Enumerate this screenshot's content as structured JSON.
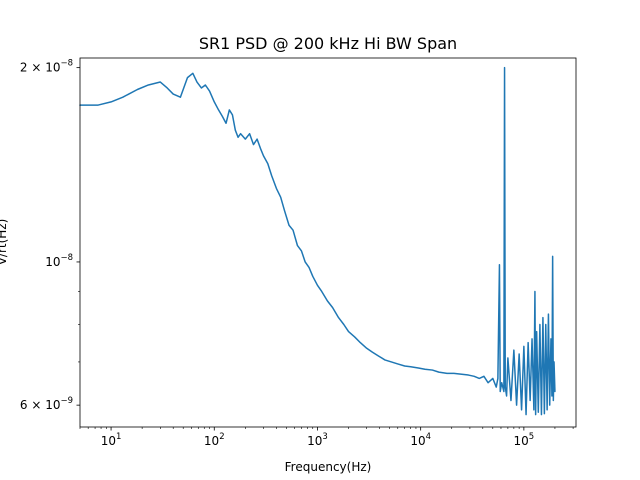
{
  "chart_data": {
    "type": "line",
    "title": "SR1 PSD @ 200 kHz Hi BW Span",
    "xlabel": "Frequency(Hz)",
    "ylabel": "V/rt(Hz)",
    "xscale": "log",
    "yscale": "log",
    "xlim": [
      5,
      320000
    ],
    "ylim": [
      5.55e-09,
      2.07e-08
    ],
    "grid": false,
    "x_ticks": [
      {
        "base": "10",
        "exp": "1",
        "value": 10
      },
      {
        "base": "10",
        "exp": "2",
        "value": 100
      },
      {
        "base": "10",
        "exp": "3",
        "value": 1000
      },
      {
        "base": "10",
        "exp": "4",
        "value": 10000
      },
      {
        "base": "10",
        "exp": "5",
        "value": 100000
      }
    ],
    "y_ticks": [
      {
        "mant": "2 × 10",
        "exp": "−8",
        "value": 2e-08
      },
      {
        "mant": "10",
        "exp": "−8",
        "value": 1e-08
      },
      {
        "mant": "6 × 10",
        "exp": "−9",
        "value": 6e-09
      }
    ],
    "series": [
      {
        "color": "#1f77b4",
        "x": [
          5,
          7.5,
          10,
          13,
          18,
          23,
          30,
          35,
          40,
          47,
          55,
          62,
          68,
          75,
          82,
          90,
          100,
          110,
          120,
          130,
          140,
          150,
          160,
          170,
          180,
          200,
          220,
          240,
          260,
          280,
          300,
          330,
          360,
          400,
          440,
          480,
          530,
          580,
          640,
          700,
          760,
          830,
          900,
          1000,
          1100,
          1250,
          1400,
          1600,
          1800,
          2000,
          2300,
          2600,
          3000,
          3400,
          3900,
          4500,
          5200,
          6000,
          7000,
          8000,
          9500,
          11000,
          13000,
          15000,
          18000,
          21000,
          25000,
          29000,
          33000,
          37000,
          41000,
          45000,
          50000,
          54000,
          56000,
          58000,
          59000,
          61000,
          64000,
          65000,
          66000,
          68000,
          70000,
          75000,
          80000,
          85000,
          90000,
          95000,
          100000,
          105000,
          110000,
          115000,
          120000,
          125000,
          128000,
          130000,
          133000,
          138000,
          143000,
          148000,
          153000,
          158000,
          163000,
          168000,
          173000,
          178000,
          183000,
          187000,
          190000,
          193000,
          196000,
          200000
        ],
        "y": [
          1.75e-08,
          1.75e-08,
          1.77e-08,
          1.8e-08,
          1.85e-08,
          1.88e-08,
          1.9e-08,
          1.86e-08,
          1.82e-08,
          1.8e-08,
          1.93e-08,
          1.96e-08,
          1.9e-08,
          1.86e-08,
          1.88e-08,
          1.84e-08,
          1.77e-08,
          1.72e-08,
          1.68e-08,
          1.64e-08,
          1.72e-08,
          1.69e-08,
          1.6e-08,
          1.56e-08,
          1.58e-08,
          1.55e-08,
          1.58e-08,
          1.52e-08,
          1.55e-08,
          1.5e-08,
          1.46e-08,
          1.42e-08,
          1.36e-08,
          1.3e-08,
          1.26e-08,
          1.2e-08,
          1.14e-08,
          1.12e-08,
          1.06e-08,
          1.04e-08,
          1e-08,
          9.8e-09,
          9.5e-09,
          9.2e-09,
          9e-09,
          8.7e-09,
          8.5e-09,
          8.2e-09,
          8e-09,
          7.8e-09,
          7.65e-09,
          7.5e-09,
          7.35e-09,
          7.25e-09,
          7.15e-09,
          7.05e-09,
          7e-09,
          6.95e-09,
          6.9e-09,
          6.88e-09,
          6.85e-09,
          6.82e-09,
          6.8e-09,
          6.75e-09,
          6.72e-09,
          6.72e-09,
          6.7e-09,
          6.68e-09,
          6.65e-09,
          6.6e-09,
          6.65e-09,
          6.5e-09,
          6.6e-09,
          6.4e-09,
          6.6e-09,
          9.9e-09,
          6.3e-09,
          6.5e-09,
          6.3e-09,
          2e-08,
          6.4e-09,
          6.2e-09,
          7.1e-09,
          6.1e-09,
          7.3e-09,
          6e-09,
          7.2e-09,
          5.9e-09,
          7.4e-09,
          5.8e-09,
          7.5e-09,
          6.1e-09,
          7.6e-09,
          5.9e-09,
          9e-09,
          5.8e-09,
          7.8e-09,
          5.85e-09,
          8e-09,
          5.8e-09,
          8.2e-09,
          5.82e-09,
          8e-09,
          5.9e-09,
          8.3e-09,
          6e-09,
          7.6e-09,
          6.2e-09,
          1.02e-08,
          6.1e-09,
          7e-09,
          6.3e-09
        ]
      }
    ]
  }
}
